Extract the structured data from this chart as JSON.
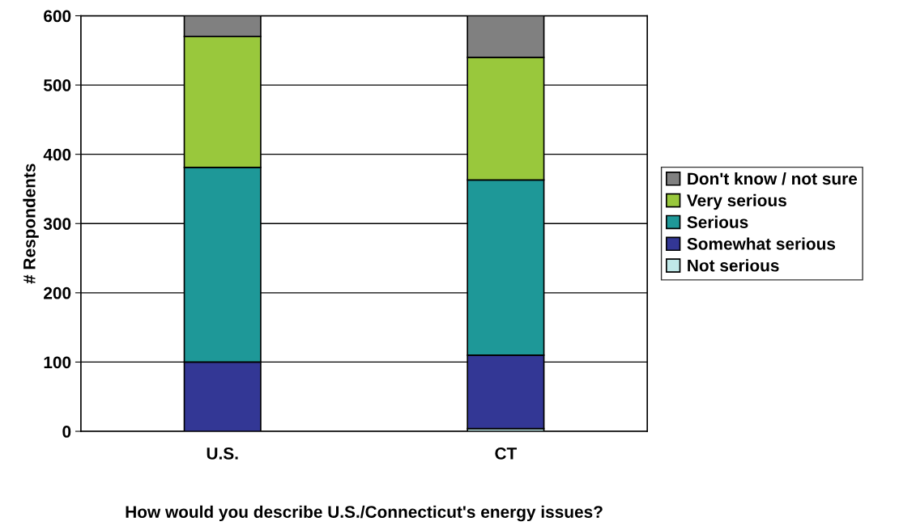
{
  "chart_data": {
    "type": "bar",
    "stacked": true,
    "xlabel": "How would you describe U.S./Connecticut's energy issues?",
    "ylabel": "# Respondents",
    "categories": [
      "U.S.",
      "CT"
    ],
    "series": [
      {
        "name": "Not serious",
        "color": "#c0e8e8",
        "values": [
          null,
          4
        ]
      },
      {
        "name": "Somewhat serious",
        "color": "#333795",
        "values": [
          100,
          106
        ]
      },
      {
        "name": "Serious",
        "color": "#1e9898",
        "values": [
          281,
          253
        ]
      },
      {
        "name": "Very serious",
        "color": "#99c83c",
        "values": [
          189,
          177
        ]
      },
      {
        "name": "Don't know / not sure",
        "color": "#808080",
        "values": [
          30,
          60
        ]
      }
    ],
    "ylim": [
      0,
      600
    ],
    "yticks": [
      0,
      100,
      200,
      300,
      400,
      500,
      600
    ],
    "grid": "y",
    "legend": "right"
  }
}
